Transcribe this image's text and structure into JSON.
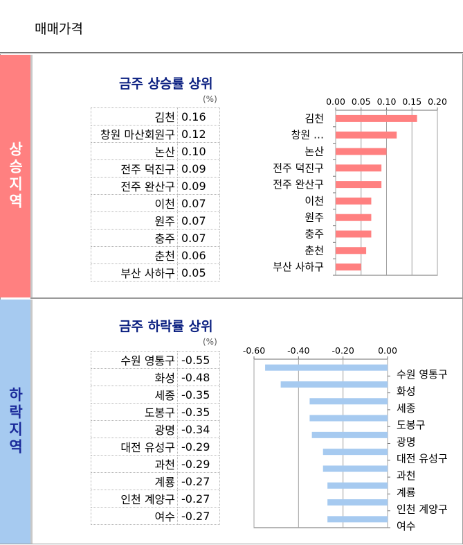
{
  "page": {
    "title": "매매가격"
  },
  "rise": {
    "side_label": "상승지역",
    "title": "금주 상승률 상위",
    "unit": "(%)",
    "rows": [
      {
        "name": "김천",
        "value": "0.16"
      },
      {
        "name": "창원 마산회원구",
        "value": "0.12"
      },
      {
        "name": "논산",
        "value": "0.10"
      },
      {
        "name": "전주 덕진구",
        "value": "0.09"
      },
      {
        "name": "전주 완산구",
        "value": "0.09"
      },
      {
        "name": "이천",
        "value": "0.07"
      },
      {
        "name": "원주",
        "value": "0.07"
      },
      {
        "name": "충주",
        "value": "0.07"
      },
      {
        "name": "춘천",
        "value": "0.06"
      },
      {
        "name": "부산 사하구",
        "value": "0.05"
      }
    ]
  },
  "fall": {
    "side_label": "하락지역",
    "title": "금주 하락률 상위",
    "unit": "(%)",
    "rows": [
      {
        "name": "수원 영통구",
        "value": "-0.55"
      },
      {
        "name": "화성",
        "value": "-0.48"
      },
      {
        "name": "세종",
        "value": "-0.35"
      },
      {
        "name": "도봉구",
        "value": "-0.35"
      },
      {
        "name": "광명",
        "value": "-0.34"
      },
      {
        "name": "대전 유성구",
        "value": "-0.29"
      },
      {
        "name": "과천",
        "value": "-0.29"
      },
      {
        "name": "계룡",
        "value": "-0.27"
      },
      {
        "name": "인천 계양구",
        "value": "-0.27"
      },
      {
        "name": "여수",
        "value": "-0.27"
      }
    ]
  },
  "chart_data": [
    {
      "type": "bar",
      "orientation": "horizontal",
      "categories": [
        "김천",
        "창원 …",
        "논산",
        "전주 덕진구",
        "전주 완산구",
        "이천",
        "원주",
        "충주",
        "춘천",
        "부산 사하구"
      ],
      "values": [
        0.16,
        0.12,
        0.1,
        0.09,
        0.09,
        0.07,
        0.07,
        0.07,
        0.06,
        0.05
      ],
      "xlim": [
        0.0,
        0.2
      ],
      "ticks": [
        "0.00",
        "0.05",
        "0.10",
        "0.15",
        "0.20"
      ],
      "axis_position": "top",
      "grid": true,
      "color": "#ff8080"
    },
    {
      "type": "bar",
      "orientation": "horizontal",
      "categories": [
        "수원 영통구",
        "화성",
        "세종",
        "도봉구",
        "광명",
        "대전 유성구",
        "과천",
        "계룡",
        "인천 계양구",
        "여수"
      ],
      "values": [
        -0.55,
        -0.48,
        -0.35,
        -0.35,
        -0.34,
        -0.29,
        -0.29,
        -0.27,
        -0.27,
        -0.27
      ],
      "xlim": [
        -0.6,
        0.0
      ],
      "ticks": [
        "-0.60",
        "-0.40",
        "-0.20",
        "0.00"
      ],
      "axis_position": "top",
      "grid": true,
      "color": "#a6caf0"
    }
  ]
}
